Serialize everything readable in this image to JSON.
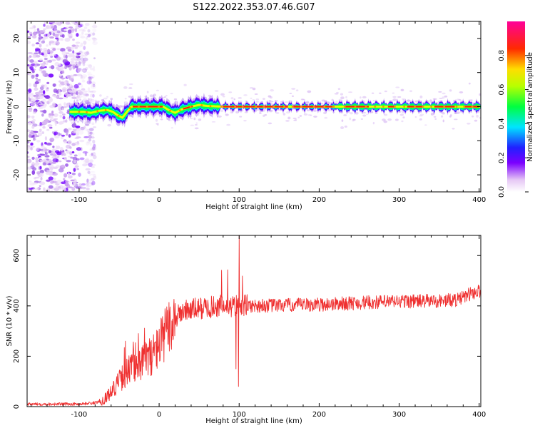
{
  "title": "S122.2022.353.07.46.G07",
  "colors": {
    "snr_line": "#ef3030",
    "frame": "#000000",
    "background": "#ffffff"
  },
  "chart_data": [
    {
      "type": "heatmap",
      "title": "S122.2022.353.07.46.G07",
      "xlabel": "Height of straight line (km)",
      "ylabel": "Frequency (Hz)",
      "xlim": [
        -165,
        402
      ],
      "ylim": [
        -25,
        25
      ],
      "x_ticks": [
        "-100",
        "0",
        "100",
        "200",
        "300",
        "400"
      ],
      "y_ticks": [
        "-20",
        "-10",
        "0",
        "10",
        "20"
      ],
      "grid": false,
      "colormap": "rainbow (white-violet-blue-cyan-green-yellow-red-magenta)",
      "colorbar": {
        "label": "Normalized spectral amplitude",
        "range": [
          0,
          1
        ],
        "ticks": [
          "0.0",
          "0.2",
          "0.4",
          "0.6",
          "0.8"
        ]
      },
      "description_values": {
        "band_center_hz": 0,
        "band_start_km": -112,
        "noise_region_km": [
          -165,
          -100
        ]
      },
      "center_frequency_trace": [
        {
          "x": -112,
          "y": -1.5
        },
        {
          "x": -95,
          "y": -1.5
        },
        {
          "x": -85,
          "y": -1.8
        },
        {
          "x": -75,
          "y": -1.2
        },
        {
          "x": -65,
          "y": -1.0
        },
        {
          "x": -58,
          "y": -1.5
        },
        {
          "x": -52,
          "y": -2.5
        },
        {
          "x": -46,
          "y": -3.2
        },
        {
          "x": -40,
          "y": -1.5
        },
        {
          "x": -35,
          "y": 0
        },
        {
          "x": -20,
          "y": 0
        },
        {
          "x": 5,
          "y": 0
        },
        {
          "x": 12,
          "y": -1.0
        },
        {
          "x": 20,
          "y": -1.8
        },
        {
          "x": 28,
          "y": -0.8
        },
        {
          "x": 40,
          "y": 0
        },
        {
          "x": 50,
          "y": 0.5
        },
        {
          "x": 60,
          "y": 0.2
        },
        {
          "x": 80,
          "y": 0
        },
        {
          "x": 402,
          "y": 0
        }
      ]
    },
    {
      "type": "line",
      "xlabel": "Height of straight line (km)",
      "ylabel": "SNR (10 * v/v)",
      "xlim": [
        -165,
        402
      ],
      "ylim": [
        0,
        680
      ],
      "x_ticks": [
        "-100",
        "0",
        "100",
        "200",
        "300",
        "400"
      ],
      "y_ticks": [
        "0",
        "200",
        "400",
        "600"
      ],
      "grid": false,
      "series": [
        {
          "color": "#ef3030",
          "trend": [
            {
              "x": -165,
              "y": 10
            },
            {
              "x": -100,
              "y": 10
            },
            {
              "x": -80,
              "y": 15
            },
            {
              "x": -70,
              "y": 25
            },
            {
              "x": -60,
              "y": 60
            },
            {
              "x": -50,
              "y": 100
            },
            {
              "x": -40,
              "y": 140
            },
            {
              "x": -30,
              "y": 165
            },
            {
              "x": -20,
              "y": 180
            },
            {
              "x": -10,
              "y": 200
            },
            {
              "x": 0,
              "y": 245
            },
            {
              "x": 10,
              "y": 300
            },
            {
              "x": 20,
              "y": 350
            },
            {
              "x": 30,
              "y": 380
            },
            {
              "x": 50,
              "y": 390
            },
            {
              "x": 80,
              "y": 400
            },
            {
              "x": 100,
              "y": 400
            },
            {
              "x": 150,
              "y": 402
            },
            {
              "x": 200,
              "y": 405
            },
            {
              "x": 250,
              "y": 412
            },
            {
              "x": 300,
              "y": 418
            },
            {
              "x": 350,
              "y": 420
            },
            {
              "x": 375,
              "y": 425
            },
            {
              "x": 390,
              "y": 450
            },
            {
              "x": 402,
              "y": 460
            }
          ],
          "spikes": [
            {
              "x": 100,
              "y": 680
            },
            {
              "x": 99,
              "y": 80
            },
            {
              "x": 96,
              "y": 150
            },
            {
              "x": -42,
              "y": 260
            },
            {
              "x": -26,
              "y": 290
            },
            {
              "x": -12,
              "y": 270
            },
            {
              "x": -2,
              "y": 300
            }
          ]
        }
      ]
    }
  ]
}
